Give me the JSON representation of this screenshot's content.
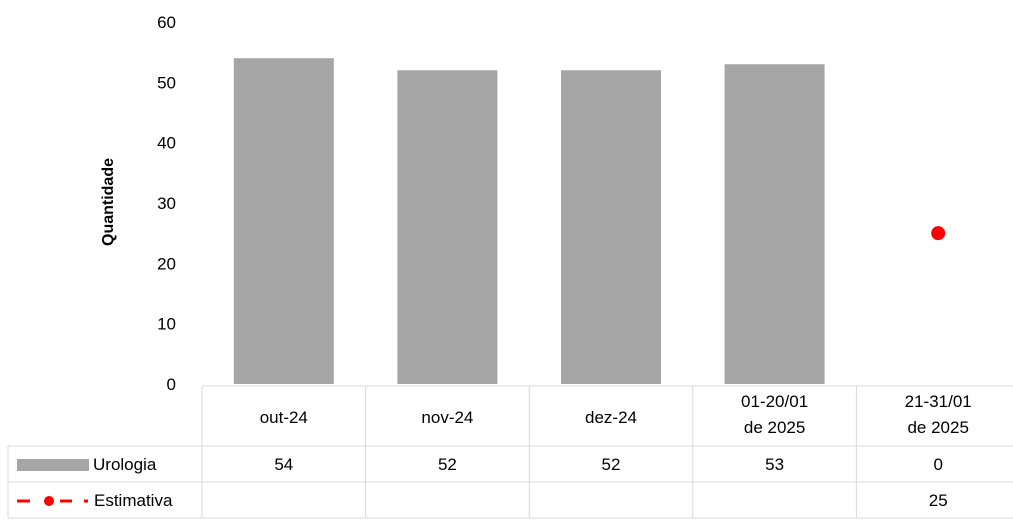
{
  "chart_data": {
    "type": "bar",
    "ylabel": "Quantidade",
    "ylim": [
      0,
      60
    ],
    "yticks": [
      "0",
      "10",
      "20",
      "30",
      "40",
      "50",
      "60"
    ],
    "categories": [
      [
        "out-24"
      ],
      [
        "nov-24"
      ],
      [
        "dez-24"
      ],
      [
        "01-20/01",
        "de 2025"
      ],
      [
        "21-31/01",
        "de 2025"
      ]
    ],
    "series": [
      {
        "name": "Urologia",
        "kind": "bar",
        "color": "#a5a5a5",
        "values": [
          54,
          52,
          52,
          53,
          0
        ]
      },
      {
        "name": "Estimativa",
        "kind": "marker",
        "color": "#ff0000",
        "values": [
          null,
          null,
          null,
          null,
          25
        ]
      }
    ],
    "data_table": true,
    "legend": "data-table"
  }
}
